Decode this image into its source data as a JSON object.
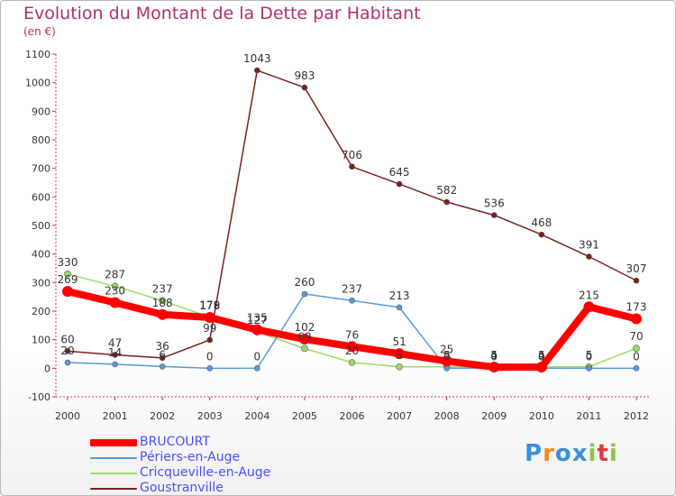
{
  "header": {
    "title": "Evolution du Montant de la Dette par Habitant",
    "unit": "(en €)"
  },
  "logo": {
    "letters": [
      "P",
      "r",
      "o",
      "x",
      "i",
      "t",
      "i"
    ],
    "colors": [
      "#3b8fd6",
      "#f08a1e",
      "#3b8fd6",
      "#3b8fd6",
      "#8ec63f",
      "#e23a3a",
      "#8ec63f"
    ]
  },
  "chart_data": {
    "type": "line",
    "title": "Evolution du Montant de la Dette par Habitant",
    "ylabel": "(en €)",
    "xlabel": "",
    "ylim": [
      -100,
      1100
    ],
    "yticks": [
      -100,
      0,
      100,
      200,
      300,
      400,
      500,
      600,
      700,
      800,
      900,
      1000,
      1100
    ],
    "categories": [
      "2000",
      "2001",
      "2002",
      "2003",
      "2004",
      "2005",
      "2006",
      "2007",
      "2008",
      "2009",
      "2010",
      "2011",
      "2012"
    ],
    "legend_position": "bottom-left",
    "grid": false,
    "series": [
      {
        "name": "BRUCOURT",
        "color": "#ff0000",
        "values": [
          269,
          230,
          188,
          178,
          135,
          102,
          76,
          51,
          25,
          4,
          4,
          215,
          173
        ],
        "labels": [
          "269",
          "230",
          "188",
          "178",
          "135",
          "102",
          "76",
          "51",
          "25",
          "4",
          "4",
          "215",
          "173"
        ]
      },
      {
        "name": "Périers-en-Auge",
        "color": "#5a9bd4",
        "values": [
          20,
          14,
          6,
          0,
          0,
          260,
          237,
          213,
          0,
          0,
          0,
          0,
          0
        ],
        "labels": [
          "20",
          "14",
          "6",
          "0",
          "0",
          "260",
          "237",
          "213",
          "0",
          "0",
          "0",
          "0",
          "0"
        ]
      },
      {
        "name": "Cricqueville-en-Auge",
        "color": "#99dd66",
        "values": [
          330,
          287,
          237,
          179,
          127,
          69,
          20,
          5,
          5,
          5,
          5,
          5,
          70
        ],
        "labels": [
          "330",
          "287",
          "237",
          "179",
          "127",
          "69",
          "20",
          "5",
          "5",
          "5",
          "5",
          "5",
          "70"
        ]
      },
      {
        "name": "Goustranville",
        "color": "#7a2020",
        "values": [
          60,
          47,
          36,
          99,
          1043,
          983,
          706,
          645,
          582,
          536,
          468,
          391,
          307
        ],
        "labels": [
          "60",
          "47",
          "36",
          "99",
          "1043",
          "983",
          "706",
          "645",
          "582",
          "536",
          "468",
          "391",
          "307"
        ]
      }
    ]
  }
}
